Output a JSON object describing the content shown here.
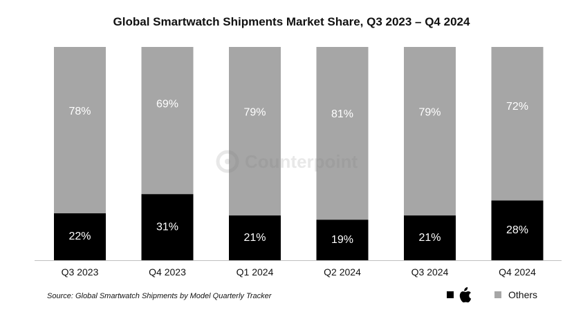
{
  "colors": {
    "apple": "#000000",
    "others": "#a6a6a6",
    "axis": "#bfbfbf"
  },
  "chart_data": {
    "type": "bar",
    "stacked": true,
    "title": "Global Smartwatch Shipments Market Share, Q3 2023 – Q4 2024",
    "categories": [
      "Q3 2023",
      "Q4 2023",
      "Q1 2024",
      "Q2 2024",
      "Q3 2024",
      "Q4 2024"
    ],
    "series": [
      {
        "key": "apple",
        "values": [
          22,
          31,
          21,
          19,
          21,
          28
        ],
        "labels": [
          "22%",
          "31%",
          "21%",
          "19%",
          "21%",
          "28%"
        ]
      },
      {
        "key": "others",
        "name": "Others",
        "values": [
          78,
          69,
          79,
          81,
          79,
          72
        ],
        "labels": [
          "78%",
          "69%",
          "79%",
          "81%",
          "79%",
          "72%"
        ]
      }
    ],
    "ylim": [
      0,
      100
    ],
    "unit": "%",
    "grid": false,
    "legend_position": "bottom-right",
    "source": "Source: Global Smartwatch Shipments by Model Quarterly Tracker",
    "watermark": "Counterpoint"
  }
}
